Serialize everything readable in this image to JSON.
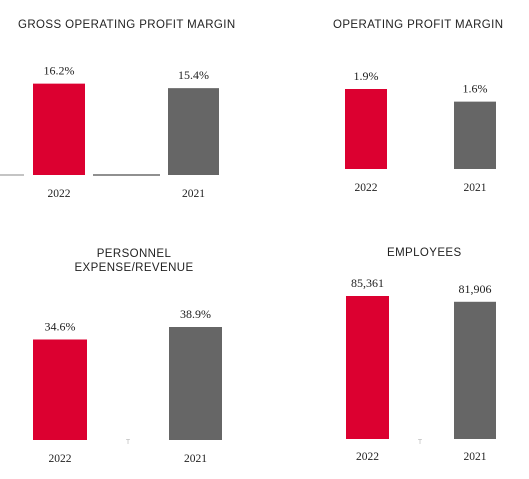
{
  "colors": {
    "current": "#dc0030",
    "previous": "#666666"
  },
  "chart_data": [
    {
      "type": "bar",
      "title": "GROSS OPERATING PROFIT MARGIN",
      "categories": [
        "2022",
        "2021"
      ],
      "values": [
        16.2,
        15.4
      ],
      "value_labels": [
        "16.2%",
        "15.4%"
      ],
      "ylim": [
        0,
        17.2
      ]
    },
    {
      "type": "bar",
      "title": "OPERATING PROFIT MARGIN",
      "categories": [
        "2022",
        "2021"
      ],
      "values": [
        1.9,
        1.6
      ],
      "value_labels": [
        "1.9%",
        "1.6%"
      ],
      "ylim": [
        0,
        1.9
      ]
    },
    {
      "type": "bar",
      "title_lines": [
        "PERSONNEL",
        "EXPENSE/REVENUE"
      ],
      "categories": [
        "2022",
        "2021"
      ],
      "values": [
        34.6,
        38.9
      ],
      "value_labels": [
        "34.6%",
        "38.9%"
      ],
      "ylim": [
        0,
        38.9
      ]
    },
    {
      "type": "bar",
      "title": "EMPLOYEES",
      "categories": [
        "2022",
        "2021"
      ],
      "values": [
        85361,
        81906
      ],
      "value_labels": [
        "85,361",
        "81,906"
      ],
      "ylim": [
        0,
        85361
      ]
    }
  ]
}
